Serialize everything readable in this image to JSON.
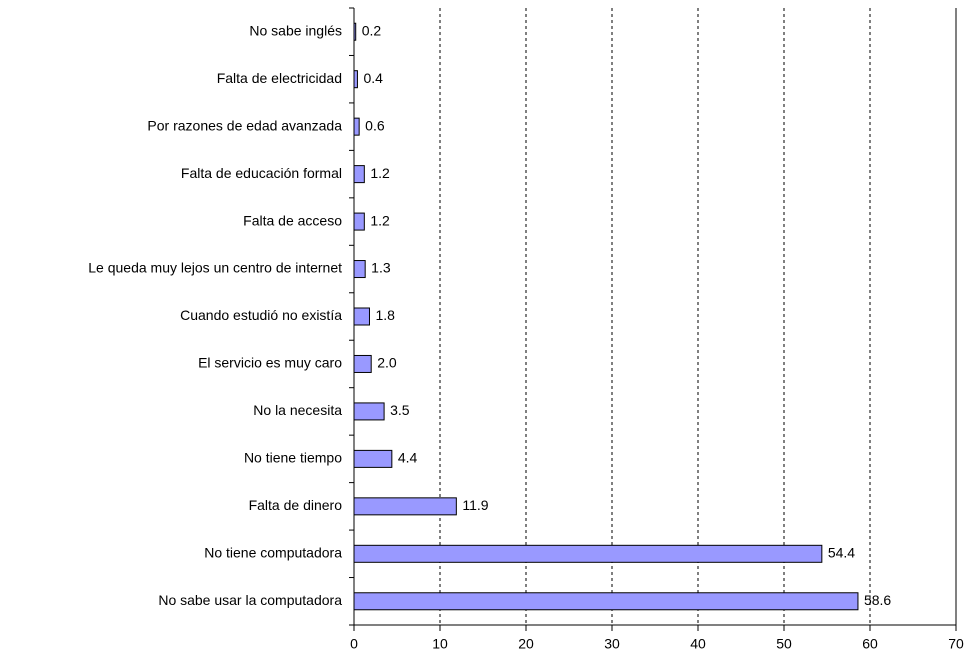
{
  "chart_data": {
    "type": "barh",
    "categories": [
      "No sabe inglés",
      "Falta de electricidad",
      "Por razones de edad avanzada",
      "Falta de educación formal",
      "Falta de acceso",
      "Le queda muy lejos un centro de internet",
      "Cuando estudió no existía",
      "El servicio es muy caro",
      "No la necesita",
      "No tiene tiempo",
      "Falta de dinero",
      "No tiene computadora",
      "No sabe usar la computadora"
    ],
    "values": [
      0.2,
      0.4,
      0.6,
      1.2,
      1.2,
      1.3,
      1.8,
      2.0,
      3.5,
      4.4,
      11.9,
      54.4,
      58.6
    ],
    "value_labels": [
      "0.2",
      "0.4",
      "0.6",
      "1.2",
      "1.2",
      "1.3",
      "1.8",
      "2.0",
      "3.5",
      "4.4",
      "11.9",
      "54.4",
      "58.6"
    ],
    "color": "#9999ff",
    "xlim": [
      0,
      70
    ],
    "xticks": [
      0,
      10,
      20,
      30,
      40,
      50,
      60,
      70
    ],
    "grid": true
  }
}
